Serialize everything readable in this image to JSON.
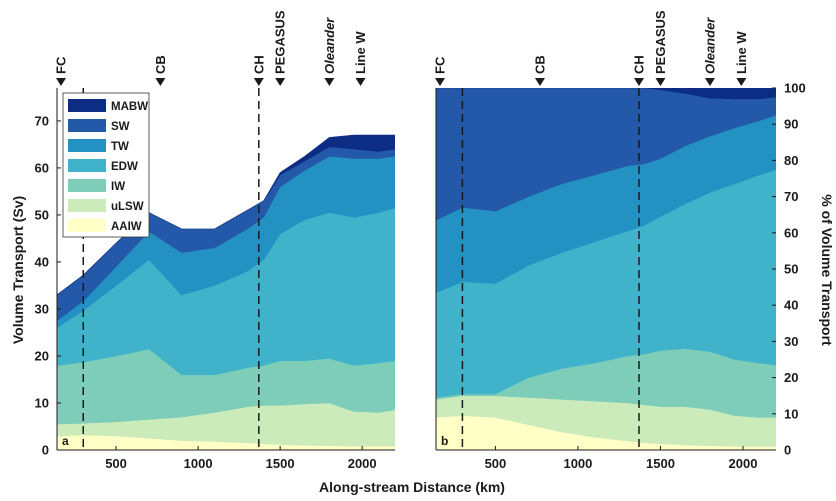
{
  "chart_data": [
    {
      "type": "area",
      "stacked": true,
      "panel_label": "a",
      "ylabel": "Volume Transport (Sv)",
      "xlim": [
        140,
        2200
      ],
      "ylim": [
        0,
        77
      ],
      "yticks": [
        0,
        10,
        20,
        30,
        40,
        50,
        60,
        70
      ],
      "grid": false,
      "legend_position": "top-left",
      "x": [
        140,
        300,
        500,
        700,
        900,
        1100,
        1300,
        1400,
        1500,
        1650,
        1800,
        1950,
        2100,
        2200
      ],
      "series": [
        {
          "name": "AAIW",
          "color": "#ffffc6",
          "values": [
            3,
            3.2,
            3,
            2.5,
            2,
            1.8,
            1.5,
            1.3,
            1.2,
            1,
            0.9,
            0.8,
            0.8,
            0.8
          ]
        },
        {
          "name": "uLSW",
          "color": "#ccebbb",
          "values": [
            2.5,
            2.5,
            3,
            4,
            5,
            6.2,
            7.7,
            8.2,
            8.3,
            8.8,
            9.1,
            7.4,
            7.2,
            7.7
          ]
        },
        {
          "name": "IW",
          "color": "#7dcdb9",
          "values": [
            12.5,
            13,
            14,
            15,
            9,
            8,
            8.3,
            8.5,
            9.5,
            9.2,
            9.5,
            9.8,
            10.5,
            10.5
          ]
        },
        {
          "name": "EDW",
          "color": "#40b2c9",
          "values": [
            8,
            11,
            15,
            19,
            17,
            19,
            20.5,
            22.5,
            27,
            30,
            31,
            31.5,
            32,
            32.5
          ]
        },
        {
          "name": "TW",
          "color": "#2491c3",
          "values": [
            1.5,
            2,
            4,
            6,
            9,
            8,
            9,
            9,
            10,
            10.5,
            12,
            12.5,
            11.5,
            11
          ]
        },
        {
          "name": "SW",
          "color": "#2359a8",
          "values": [
            5.5,
            5.5,
            5,
            4,
            5,
            4,
            4,
            3.5,
            2.5,
            2,
            2,
            2,
            1.5,
            1.5
          ]
        },
        {
          "name": "MABW",
          "color": "#0c2d83",
          "values": [
            0,
            0,
            0,
            0,
            0,
            0,
            0,
            0,
            0.5,
            1,
            2,
            3,
            3.5,
            3
          ]
        }
      ]
    },
    {
      "type": "area",
      "stacked": true,
      "panel_label": "b",
      "ylabel": "% of Volume Transport",
      "xlim": [
        140,
        2200
      ],
      "ylim": [
        0,
        100
      ],
      "yticks": [
        0,
        10,
        20,
        30,
        40,
        50,
        60,
        70,
        80,
        90,
        100
      ],
      "grid": false,
      "x": [
        140,
        300,
        500,
        700,
        900,
        1100,
        1300,
        1400,
        1500,
        1650,
        1800,
        1950,
        2100,
        2200
      ],
      "series": [
        {
          "name": "AAIW",
          "color": "#ffffc6",
          "values": [
            9,
            9.5,
            9,
            7,
            5,
            3.5,
            2.5,
            2,
            1.7,
            1.4,
            1.2,
            1,
            1,
            1
          ]
        },
        {
          "name": "uLSW",
          "color": "#ccebbb",
          "values": [
            5,
            5.5,
            6,
            7.5,
            9,
            10,
            10.5,
            10.5,
            10.3,
            10.6,
            10,
            8.5,
            8,
            8
          ]
        },
        {
          "name": "IW",
          "color": "#7dcdb9",
          "values": [
            0.5,
            0.5,
            0.5,
            5.5,
            8.5,
            10.5,
            13,
            14,
            15.5,
            16,
            16,
            15.5,
            15,
            14.5
          ]
        },
        {
          "name": "EDW",
          "color": "#40b2c9",
          "values": [
            29,
            31,
            30.5,
            31,
            32,
            33.5,
            34.5,
            35.5,
            37,
            40,
            44,
            48.5,
            52,
            54
          ]
        },
        {
          "name": "TW",
          "color": "#2491c3",
          "values": [
            20,
            20.5,
            20,
            19,
            19,
            18.5,
            18,
            17,
            16,
            16,
            15.5,
            15.5,
            15,
            15
          ]
        },
        {
          "name": "SW",
          "color": "#2359a8",
          "values": [
            36.5,
            33,
            34,
            30,
            26.5,
            24,
            21.5,
            21,
            19,
            14.5,
            10.5,
            8,
            6,
            5
          ]
        },
        {
          "name": "MABW",
          "color": "#0c2d83",
          "values": [
            0,
            0,
            0,
            0,
            0,
            0,
            0,
            0,
            0.5,
            1.5,
            2.8,
            3,
            3,
            2.5
          ]
        }
      ]
    }
  ],
  "xlabel": "Along-stream Distance (km)",
  "xticks": [
    500,
    1000,
    1500,
    2000
  ],
  "stations": [
    {
      "label": "FC",
      "x": 140,
      "italic": false,
      "dashed_line": false
    },
    {
      "label": "CB",
      "x": 770,
      "italic": false,
      "dashed_line": false
    },
    {
      "label": "CH",
      "x": 1370,
      "italic": false,
      "dashed_line": true
    },
    {
      "label": "PEGASUS",
      "x": 1500,
      "italic": false,
      "dashed_line": false
    },
    {
      "label": "Oleander",
      "x": 1800,
      "italic": true,
      "dashed_line": false
    },
    {
      "label": "Line W",
      "x": 1990,
      "italic": false,
      "dashed_line": false
    }
  ],
  "extra_dashed_line_x": 300,
  "legend": {
    "entries": [
      "MABW",
      "SW",
      "TW",
      "EDW",
      "IW",
      "uLSW",
      "AAIW"
    ]
  }
}
